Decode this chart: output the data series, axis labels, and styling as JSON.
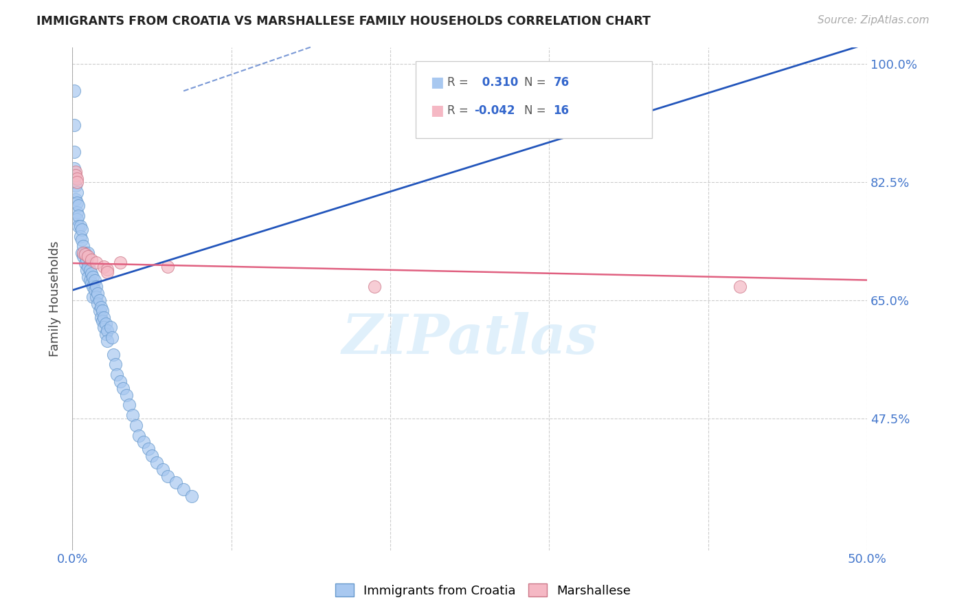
{
  "title": "IMMIGRANTS FROM CROATIA VS MARSHALLESE FAMILY HOUSEHOLDS CORRELATION CHART",
  "source": "Source: ZipAtlas.com",
  "ylabel": "Family Households",
  "xlim": [
    0.0,
    0.5
  ],
  "ylim": [
    0.28,
    1.025
  ],
  "yticks": [
    0.475,
    0.65,
    0.825,
    1.0
  ],
  "yticklabels": [
    "47.5%",
    "65.0%",
    "82.5%",
    "100.0%"
  ],
  "xticks": [
    0.0,
    0.1,
    0.2,
    0.3,
    0.4,
    0.5
  ],
  "xticklabels": [
    "0.0%",
    "",
    "",
    "",
    "",
    "50.0%"
  ],
  "watermark": "ZIPatlas",
  "blue_color": "#a8c8f0",
  "pink_color": "#f5b8c4",
  "line_blue": "#2255bb",
  "line_pink": "#e06080",
  "blue_scatter": [
    [
      0.001,
      0.91
    ],
    [
      0.001,
      0.87
    ],
    [
      0.001,
      0.845
    ],
    [
      0.001,
      0.83
    ],
    [
      0.002,
      0.82
    ],
    [
      0.002,
      0.8
    ],
    [
      0.003,
      0.81
    ],
    [
      0.003,
      0.795
    ],
    [
      0.003,
      0.78
    ],
    [
      0.003,
      0.77
    ],
    [
      0.004,
      0.79
    ],
    [
      0.004,
      0.775
    ],
    [
      0.004,
      0.76
    ],
    [
      0.005,
      0.76
    ],
    [
      0.005,
      0.745
    ],
    [
      0.006,
      0.755
    ],
    [
      0.006,
      0.74
    ],
    [
      0.006,
      0.72
    ],
    [
      0.007,
      0.73
    ],
    [
      0.007,
      0.715
    ],
    [
      0.008,
      0.72
    ],
    [
      0.008,
      0.705
    ],
    [
      0.009,
      0.71
    ],
    [
      0.009,
      0.695
    ],
    [
      0.01,
      0.7
    ],
    [
      0.01,
      0.685
    ],
    [
      0.01,
      0.72
    ],
    [
      0.011,
      0.695
    ],
    [
      0.011,
      0.68
    ],
    [
      0.012,
      0.69
    ],
    [
      0.012,
      0.675
    ],
    [
      0.013,
      0.685
    ],
    [
      0.013,
      0.67
    ],
    [
      0.013,
      0.655
    ],
    [
      0.014,
      0.68
    ],
    [
      0.014,
      0.665
    ],
    [
      0.015,
      0.67
    ],
    [
      0.015,
      0.655
    ],
    [
      0.016,
      0.66
    ],
    [
      0.016,
      0.645
    ],
    [
      0.017,
      0.65
    ],
    [
      0.017,
      0.635
    ],
    [
      0.018,
      0.64
    ],
    [
      0.018,
      0.625
    ],
    [
      0.019,
      0.635
    ],
    [
      0.019,
      0.62
    ],
    [
      0.02,
      0.625
    ],
    [
      0.02,
      0.61
    ],
    [
      0.021,
      0.615
    ],
    [
      0.021,
      0.6
    ],
    [
      0.022,
      0.605
    ],
    [
      0.022,
      0.59
    ],
    [
      0.024,
      0.61
    ],
    [
      0.025,
      0.595
    ],
    [
      0.026,
      0.57
    ],
    [
      0.027,
      0.555
    ],
    [
      0.028,
      0.54
    ],
    [
      0.03,
      0.53
    ],
    [
      0.032,
      0.52
    ],
    [
      0.034,
      0.51
    ],
    [
      0.036,
      0.495
    ],
    [
      0.038,
      0.48
    ],
    [
      0.04,
      0.465
    ],
    [
      0.042,
      0.45
    ],
    [
      0.045,
      0.44
    ],
    [
      0.048,
      0.43
    ],
    [
      0.05,
      0.42
    ],
    [
      0.053,
      0.41
    ],
    [
      0.057,
      0.4
    ],
    [
      0.06,
      0.39
    ],
    [
      0.065,
      0.38
    ],
    [
      0.07,
      0.37
    ],
    [
      0.075,
      0.36
    ],
    [
      0.001,
      0.96
    ]
  ],
  "pink_scatter": [
    [
      0.002,
      0.84
    ],
    [
      0.002,
      0.835
    ],
    [
      0.003,
      0.83
    ],
    [
      0.003,
      0.825
    ],
    [
      0.007,
      0.72
    ],
    [
      0.008,
      0.718
    ],
    [
      0.01,
      0.715
    ],
    [
      0.012,
      0.71
    ],
    [
      0.015,
      0.706
    ],
    [
      0.02,
      0.7
    ],
    [
      0.022,
      0.696
    ],
    [
      0.022,
      0.692
    ],
    [
      0.03,
      0.706
    ],
    [
      0.06,
      0.7
    ],
    [
      0.42,
      0.67
    ],
    [
      0.19,
      0.67
    ]
  ],
  "blue_line": {
    "x0": 0.0,
    "y0": 0.665,
    "x1": 0.5,
    "y1": 1.03
  },
  "blue_line_dash": {
    "x0": 0.07,
    "y0": 0.96,
    "x1": 0.15,
    "y1": 1.025
  },
  "pink_line": {
    "x0": 0.0,
    "y0": 0.705,
    "x1": 0.5,
    "y1": 0.68
  }
}
